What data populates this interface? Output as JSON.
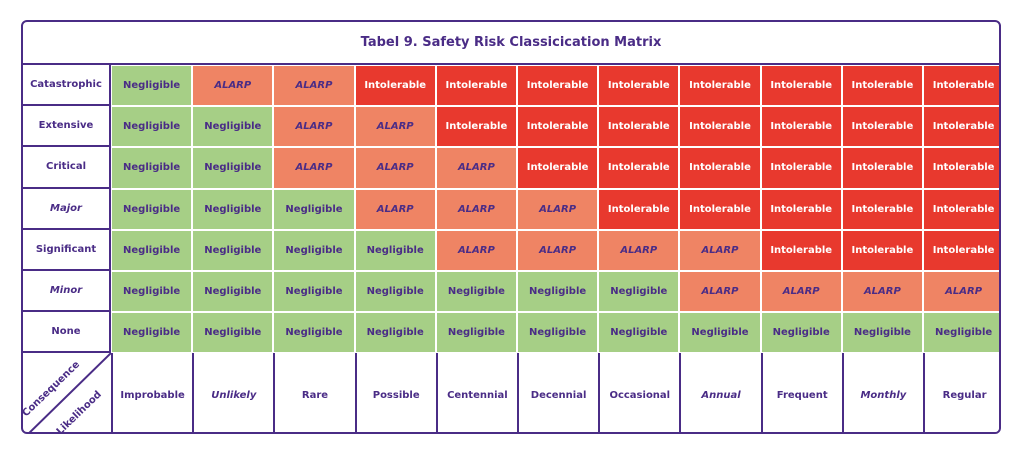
{
  "title": "Tabel 9. Safety Risk Classicication Matrix",
  "colors": {
    "border": "#4a2c86",
    "negligible": "#a6cf86",
    "alarp": "#ef8464",
    "intolerable": "#e8392e"
  },
  "axis": {
    "consequence": "Consequence",
    "likelihood": "Likelihood"
  },
  "likelihood": [
    "Improbable",
    "Unlikely",
    "Rare",
    "Possible",
    "Centennial",
    "Decennial",
    "Occasional",
    "Annual",
    "Frequent",
    "Monthly",
    "Regular"
  ],
  "rows": [
    {
      "consequence": "Catastrophic",
      "cells": [
        "Negligible",
        "ALARP",
        "ALARP",
        "Intolerable",
        "Intolerable",
        "Intolerable",
        "Intolerable",
        "Intolerable",
        "Intolerable",
        "Intolerable",
        "Intolerable"
      ]
    },
    {
      "consequence": "Extensive",
      "cells": [
        "Negligible",
        "Negligible",
        "ALARP",
        "ALARP",
        "Intolerable",
        "Intolerable",
        "Intolerable",
        "Intolerable",
        "Intolerable",
        "Intolerable",
        "Intolerable"
      ]
    },
    {
      "consequence": "Critical",
      "cells": [
        "Negligible",
        "Negligible",
        "ALARP",
        "ALARP",
        "ALARP",
        "Intolerable",
        "Intolerable",
        "Intolerable",
        "Intolerable",
        "Intolerable",
        "Intolerable"
      ]
    },
    {
      "consequence": "Major",
      "cells": [
        "Negligible",
        "Negligible",
        "Negligible",
        "ALARP",
        "ALARP",
        "ALARP",
        "Intolerable",
        "Intolerable",
        "Intolerable",
        "Intolerable",
        "Intolerable"
      ]
    },
    {
      "consequence": "Significant",
      "cells": [
        "Negligible",
        "Negligible",
        "Negligible",
        "Negligible",
        "ALARP",
        "ALARP",
        "ALARP",
        "ALARP",
        "Intolerable",
        "Intolerable",
        "Intolerable"
      ]
    },
    {
      "consequence": "Minor",
      "cells": [
        "Negligible",
        "Negligible",
        "Negligible",
        "Negligible",
        "Negligible",
        "Negligible",
        "Negligible",
        "ALARP",
        "ALARP",
        "ALARP",
        "ALARP"
      ]
    },
    {
      "consequence": "None",
      "cells": [
        "Negligible",
        "Negligible",
        "Negligible",
        "Negligible",
        "Negligible",
        "Negligible",
        "Negligible",
        "Negligible",
        "Negligible",
        "Negligible",
        "Negligible"
      ]
    }
  ]
}
